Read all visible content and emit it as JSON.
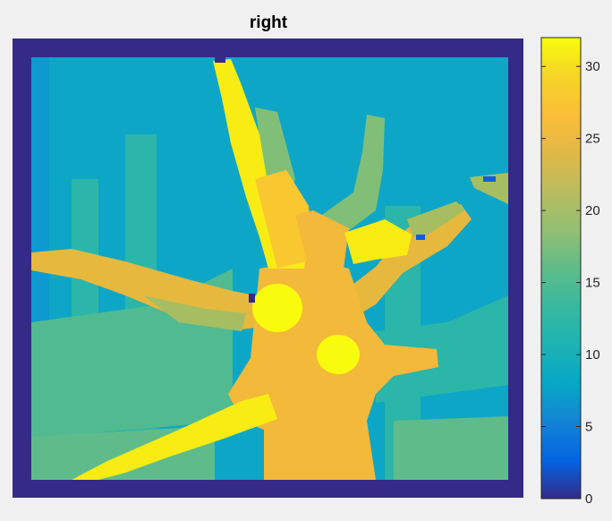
{
  "chart_data": {
    "type": "heatmap",
    "title": "right",
    "xlabel": "",
    "ylabel": "",
    "axis_ticks_visible": false,
    "grid": false,
    "colormap": "parula",
    "colorbar": {
      "position": "right",
      "range": [
        0,
        32
      ],
      "ticks": [
        0,
        5,
        10,
        15,
        20,
        25,
        30
      ],
      "tick_labels": [
        "0",
        "5",
        "10",
        "15",
        "20",
        "25",
        "30"
      ]
    },
    "border_value": 0,
    "background_value": 11,
    "regions": [
      {
        "name": "upper-left branch",
        "value": 31
      },
      {
        "name": "upper-left branch lower part",
        "value": 29
      },
      {
        "name": "left arm",
        "value": 26
      },
      {
        "name": "left arm inner",
        "value": 22
      },
      {
        "name": "upper-right branch",
        "value": 20
      },
      {
        "name": "right arm",
        "value": 26
      },
      {
        "name": "right arm tip",
        "value": 22
      },
      {
        "name": "center yellow spot",
        "value": 31
      },
      {
        "name": "right-center yellow spot",
        "value": 31
      },
      {
        "name": "trunk",
        "value": 27
      },
      {
        "name": "lower-left branch",
        "value": 31
      },
      {
        "name": "lower band",
        "value": 18
      },
      {
        "name": "mid background band",
        "value": 17
      }
    ],
    "colors": {
      "c0": "#352a87",
      "c5": "#0f5cdd",
      "c10": "#0d9ad0",
      "c11": "#0ea6c6",
      "c15": "#2cb5a9",
      "c17": "#52ba91",
      "c18": "#5fbc8a",
      "c20": "#81bf78",
      "c22": "#a6be61",
      "c25": "#d8b848",
      "c26": "#e6b83e",
      "c27": "#f2b93a",
      "c29": "#f9c831",
      "c30": "#fbd529",
      "c31": "#f8ec14",
      "c32": "#f9fb0e",
      "axes_border": "#352a87",
      "background": "#f0f0f0"
    }
  }
}
